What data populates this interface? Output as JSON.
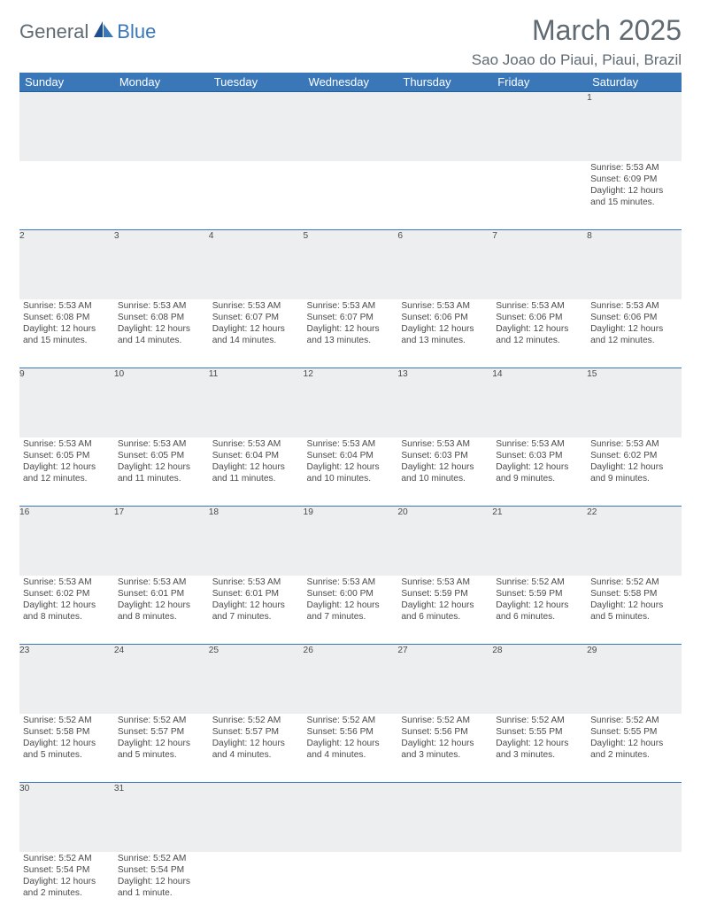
{
  "brand": {
    "part1": "General",
    "part2": "Blue"
  },
  "title": "March 2025",
  "location": "Sao Joao do Piaui, Piaui, Brazil",
  "colors": {
    "header_bg": "#3a77b8",
    "header_border": "#245e99",
    "daynum_bg": "#eceeef",
    "row_divider": "#3a77b8",
    "text_muted": "#5f6a72",
    "text_body": "#4a4a4a",
    "brand_blue": "#3a77b8"
  },
  "day_headers": [
    "Sunday",
    "Monday",
    "Tuesday",
    "Wednesday",
    "Thursday",
    "Friday",
    "Saturday"
  ],
  "weeks": [
    [
      null,
      null,
      null,
      null,
      null,
      null,
      {
        "n": "1",
        "sr": "Sunrise: 5:53 AM",
        "ss": "Sunset: 6:09 PM",
        "d1": "Daylight: 12 hours",
        "d2": "and 15 minutes."
      }
    ],
    [
      {
        "n": "2",
        "sr": "Sunrise: 5:53 AM",
        "ss": "Sunset: 6:08 PM",
        "d1": "Daylight: 12 hours",
        "d2": "and 15 minutes."
      },
      {
        "n": "3",
        "sr": "Sunrise: 5:53 AM",
        "ss": "Sunset: 6:08 PM",
        "d1": "Daylight: 12 hours",
        "d2": "and 14 minutes."
      },
      {
        "n": "4",
        "sr": "Sunrise: 5:53 AM",
        "ss": "Sunset: 6:07 PM",
        "d1": "Daylight: 12 hours",
        "d2": "and 14 minutes."
      },
      {
        "n": "5",
        "sr": "Sunrise: 5:53 AM",
        "ss": "Sunset: 6:07 PM",
        "d1": "Daylight: 12 hours",
        "d2": "and 13 minutes."
      },
      {
        "n": "6",
        "sr": "Sunrise: 5:53 AM",
        "ss": "Sunset: 6:06 PM",
        "d1": "Daylight: 12 hours",
        "d2": "and 13 minutes."
      },
      {
        "n": "7",
        "sr": "Sunrise: 5:53 AM",
        "ss": "Sunset: 6:06 PM",
        "d1": "Daylight: 12 hours",
        "d2": "and 12 minutes."
      },
      {
        "n": "8",
        "sr": "Sunrise: 5:53 AM",
        "ss": "Sunset: 6:06 PM",
        "d1": "Daylight: 12 hours",
        "d2": "and 12 minutes."
      }
    ],
    [
      {
        "n": "9",
        "sr": "Sunrise: 5:53 AM",
        "ss": "Sunset: 6:05 PM",
        "d1": "Daylight: 12 hours",
        "d2": "and 12 minutes."
      },
      {
        "n": "10",
        "sr": "Sunrise: 5:53 AM",
        "ss": "Sunset: 6:05 PM",
        "d1": "Daylight: 12 hours",
        "d2": "and 11 minutes."
      },
      {
        "n": "11",
        "sr": "Sunrise: 5:53 AM",
        "ss": "Sunset: 6:04 PM",
        "d1": "Daylight: 12 hours",
        "d2": "and 11 minutes."
      },
      {
        "n": "12",
        "sr": "Sunrise: 5:53 AM",
        "ss": "Sunset: 6:04 PM",
        "d1": "Daylight: 12 hours",
        "d2": "and 10 minutes."
      },
      {
        "n": "13",
        "sr": "Sunrise: 5:53 AM",
        "ss": "Sunset: 6:03 PM",
        "d1": "Daylight: 12 hours",
        "d2": "and 10 minutes."
      },
      {
        "n": "14",
        "sr": "Sunrise: 5:53 AM",
        "ss": "Sunset: 6:03 PM",
        "d1": "Daylight: 12 hours",
        "d2": "and 9 minutes."
      },
      {
        "n": "15",
        "sr": "Sunrise: 5:53 AM",
        "ss": "Sunset: 6:02 PM",
        "d1": "Daylight: 12 hours",
        "d2": "and 9 minutes."
      }
    ],
    [
      {
        "n": "16",
        "sr": "Sunrise: 5:53 AM",
        "ss": "Sunset: 6:02 PM",
        "d1": "Daylight: 12 hours",
        "d2": "and 8 minutes."
      },
      {
        "n": "17",
        "sr": "Sunrise: 5:53 AM",
        "ss": "Sunset: 6:01 PM",
        "d1": "Daylight: 12 hours",
        "d2": "and 8 minutes."
      },
      {
        "n": "18",
        "sr": "Sunrise: 5:53 AM",
        "ss": "Sunset: 6:01 PM",
        "d1": "Daylight: 12 hours",
        "d2": "and 7 minutes."
      },
      {
        "n": "19",
        "sr": "Sunrise: 5:53 AM",
        "ss": "Sunset: 6:00 PM",
        "d1": "Daylight: 12 hours",
        "d2": "and 7 minutes."
      },
      {
        "n": "20",
        "sr": "Sunrise: 5:53 AM",
        "ss": "Sunset: 5:59 PM",
        "d1": "Daylight: 12 hours",
        "d2": "and 6 minutes."
      },
      {
        "n": "21",
        "sr": "Sunrise: 5:52 AM",
        "ss": "Sunset: 5:59 PM",
        "d1": "Daylight: 12 hours",
        "d2": "and 6 minutes."
      },
      {
        "n": "22",
        "sr": "Sunrise: 5:52 AM",
        "ss": "Sunset: 5:58 PM",
        "d1": "Daylight: 12 hours",
        "d2": "and 5 minutes."
      }
    ],
    [
      {
        "n": "23",
        "sr": "Sunrise: 5:52 AM",
        "ss": "Sunset: 5:58 PM",
        "d1": "Daylight: 12 hours",
        "d2": "and 5 minutes."
      },
      {
        "n": "24",
        "sr": "Sunrise: 5:52 AM",
        "ss": "Sunset: 5:57 PM",
        "d1": "Daylight: 12 hours",
        "d2": "and 5 minutes."
      },
      {
        "n": "25",
        "sr": "Sunrise: 5:52 AM",
        "ss": "Sunset: 5:57 PM",
        "d1": "Daylight: 12 hours",
        "d2": "and 4 minutes."
      },
      {
        "n": "26",
        "sr": "Sunrise: 5:52 AM",
        "ss": "Sunset: 5:56 PM",
        "d1": "Daylight: 12 hours",
        "d2": "and 4 minutes."
      },
      {
        "n": "27",
        "sr": "Sunrise: 5:52 AM",
        "ss": "Sunset: 5:56 PM",
        "d1": "Daylight: 12 hours",
        "d2": "and 3 minutes."
      },
      {
        "n": "28",
        "sr": "Sunrise: 5:52 AM",
        "ss": "Sunset: 5:55 PM",
        "d1": "Daylight: 12 hours",
        "d2": "and 3 minutes."
      },
      {
        "n": "29",
        "sr": "Sunrise: 5:52 AM",
        "ss": "Sunset: 5:55 PM",
        "d1": "Daylight: 12 hours",
        "d2": "and 2 minutes."
      }
    ],
    [
      {
        "n": "30",
        "sr": "Sunrise: 5:52 AM",
        "ss": "Sunset: 5:54 PM",
        "d1": "Daylight: 12 hours",
        "d2": "and 2 minutes."
      },
      {
        "n": "31",
        "sr": "Sunrise: 5:52 AM",
        "ss": "Sunset: 5:54 PM",
        "d1": "Daylight: 12 hours",
        "d2": "and 1 minute."
      },
      null,
      null,
      null,
      null,
      null
    ]
  ]
}
